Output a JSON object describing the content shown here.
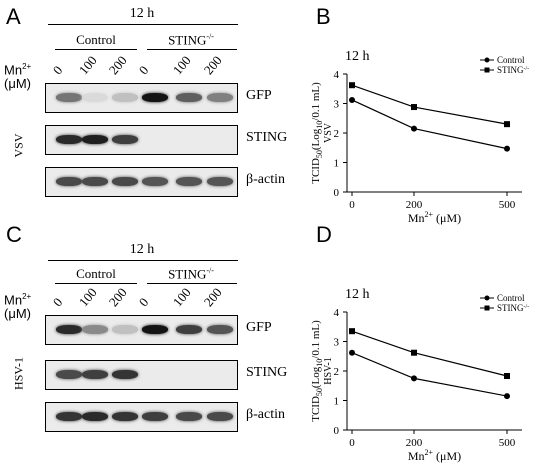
{
  "panels": {
    "A": {
      "letter": "A",
      "time": "12 h",
      "group_control": "Control",
      "group_sting": "STING",
      "group_sting_sup": "-/-",
      "mn_label": "Mn",
      "mn_sup": "2+",
      "mn_unit": "(μM)",
      "doses": [
        "0",
        "100",
        "200",
        "0",
        "100",
        "200"
      ],
      "virus": "VSV",
      "blots": [
        {
          "label": "GFP",
          "intensity": [
            0.55,
            0.08,
            0.2,
            1.0,
            0.65,
            0.5
          ]
        },
        {
          "label": "STING",
          "intensity": [
            0.9,
            0.95,
            0.8,
            0.0,
            0.0,
            0.0
          ]
        },
        {
          "label": "β-actin",
          "intensity": [
            0.75,
            0.75,
            0.75,
            0.7,
            0.7,
            0.7
          ]
        }
      ]
    },
    "C": {
      "letter": "C",
      "time": "12 h",
      "group_control": "Control",
      "group_sting": "STING",
      "group_sting_sup": "-/-",
      "mn_label": "Mn",
      "mn_sup": "2+",
      "mn_unit": "(μM)",
      "doses": [
        "0",
        "100",
        "200",
        "0",
        "100",
        "200"
      ],
      "virus": "HSV-1",
      "blots": [
        {
          "label": "GFP",
          "intensity": [
            0.9,
            0.45,
            0.2,
            1.0,
            0.8,
            0.7
          ]
        },
        {
          "label": "STING",
          "intensity": [
            0.75,
            0.8,
            0.85,
            0.0,
            0.0,
            0.0
          ]
        },
        {
          "label": "β-actin",
          "intensity": [
            0.85,
            0.9,
            0.85,
            0.8,
            0.75,
            0.75
          ]
        }
      ]
    }
  },
  "chart_data": [
    {
      "type": "line",
      "panel": "B",
      "title": "12 h",
      "virus": "VSV",
      "x": [
        0,
        200,
        500
      ],
      "xticks": [
        "0",
        "200",
        "500"
      ],
      "xlabel": "Mn",
      "xlabel_sup": "2+",
      "xlabel_unit": "(μM)",
      "ylabel_main": "TCID",
      "ylabel_sub1": "50",
      "ylabel_mid": "(Log",
      "ylabel_sub2": "10",
      "ylabel_end": "/0.1 mL)",
      "ylim": [
        0,
        4
      ],
      "yticks": [
        "0",
        "1",
        "2",
        "3",
        "4"
      ],
      "legend": "top-right",
      "series": [
        {
          "name": "Control",
          "marker": "circle",
          "values": [
            3.12,
            2.15,
            1.47
          ]
        },
        {
          "name": "STING",
          "name_sup": "-/-",
          "marker": "square",
          "values": [
            3.62,
            2.88,
            2.3
          ]
        }
      ]
    },
    {
      "type": "line",
      "panel": "D",
      "title": "12 h",
      "virus": "HSV-1",
      "x": [
        0,
        200,
        500
      ],
      "xticks": [
        "0",
        "200",
        "500"
      ],
      "xlabel": "Mn",
      "xlabel_sup": "2+",
      "xlabel_unit": "(μM)",
      "ylabel_main": "TCID",
      "ylabel_sub1": "50",
      "ylabel_mid": "(Log",
      "ylabel_sub2": "10",
      "ylabel_end": "/0.1 mL)",
      "ylim": [
        0,
        4
      ],
      "yticks": [
        "0",
        "1",
        "2",
        "3",
        "4"
      ],
      "legend": "top-right",
      "series": [
        {
          "name": "Control",
          "marker": "circle",
          "values": [
            2.62,
            1.75,
            1.15
          ]
        },
        {
          "name": "STING",
          "name_sup": "-/-",
          "marker": "square",
          "values": [
            3.35,
            2.62,
            1.83
          ]
        }
      ]
    }
  ]
}
